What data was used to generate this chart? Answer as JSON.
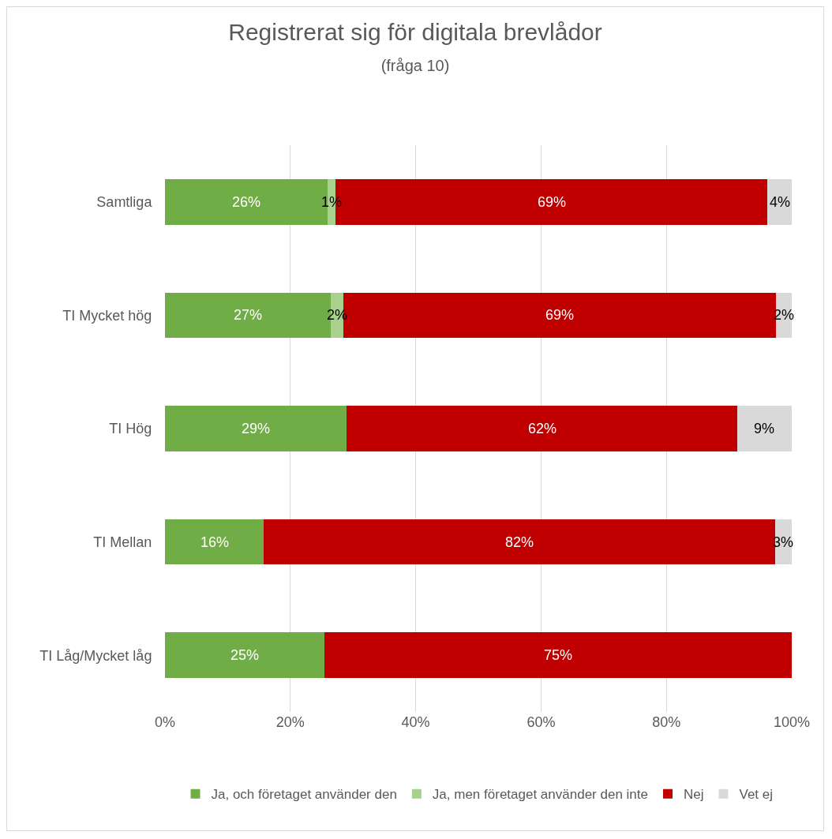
{
  "chart_data": {
    "type": "bar",
    "orientation": "horizontal",
    "stacked": true,
    "title": "Registrerat sig för digitala brevlådor",
    "subtitle": "(fråga 10)",
    "categories": [
      "Samtliga",
      "TI Mycket hög",
      "TI Hög",
      "TI Mellan",
      "TI Låg/Mycket låg"
    ],
    "series": [
      {
        "name": "Ja, och företaget använder den",
        "color": "#70ad47",
        "values": [
          26,
          26.5,
          29,
          15.8,
          25.4
        ],
        "value_labels": [
          "26%",
          "27%",
          "29%",
          "16%",
          "25%"
        ]
      },
      {
        "name": "Ja, men företaget använder den inte",
        "color": "#a9d18e",
        "values": [
          1.2,
          2,
          null,
          null,
          null
        ],
        "value_labels": [
          "1%",
          "2%",
          null,
          null,
          null
        ]
      },
      {
        "name": "Nej",
        "color": "#c00000",
        "values": [
          68.9,
          69,
          62.3,
          81.5,
          74.6
        ],
        "value_labels": [
          "69%",
          "69%",
          "62%",
          "82%",
          "75%"
        ]
      },
      {
        "name": "Vet ej",
        "color": "#d9d9d9",
        "values": [
          3.9,
          2.5,
          8.7,
          2.7,
          null
        ],
        "value_labels": [
          "4%",
          "2%",
          "9%",
          "3%",
          null
        ]
      }
    ],
    "xlim": [
      0,
      100
    ],
    "xticks": [
      {
        "value": 0,
        "label": "0%"
      },
      {
        "value": 20,
        "label": "20%"
      },
      {
        "value": 40,
        "label": "40%"
      },
      {
        "value": 60,
        "label": "60%"
      },
      {
        "value": 80,
        "label": "80%"
      },
      {
        "value": 100,
        "label": "100%"
      }
    ],
    "grid": "x",
    "legend": "bottom"
  }
}
